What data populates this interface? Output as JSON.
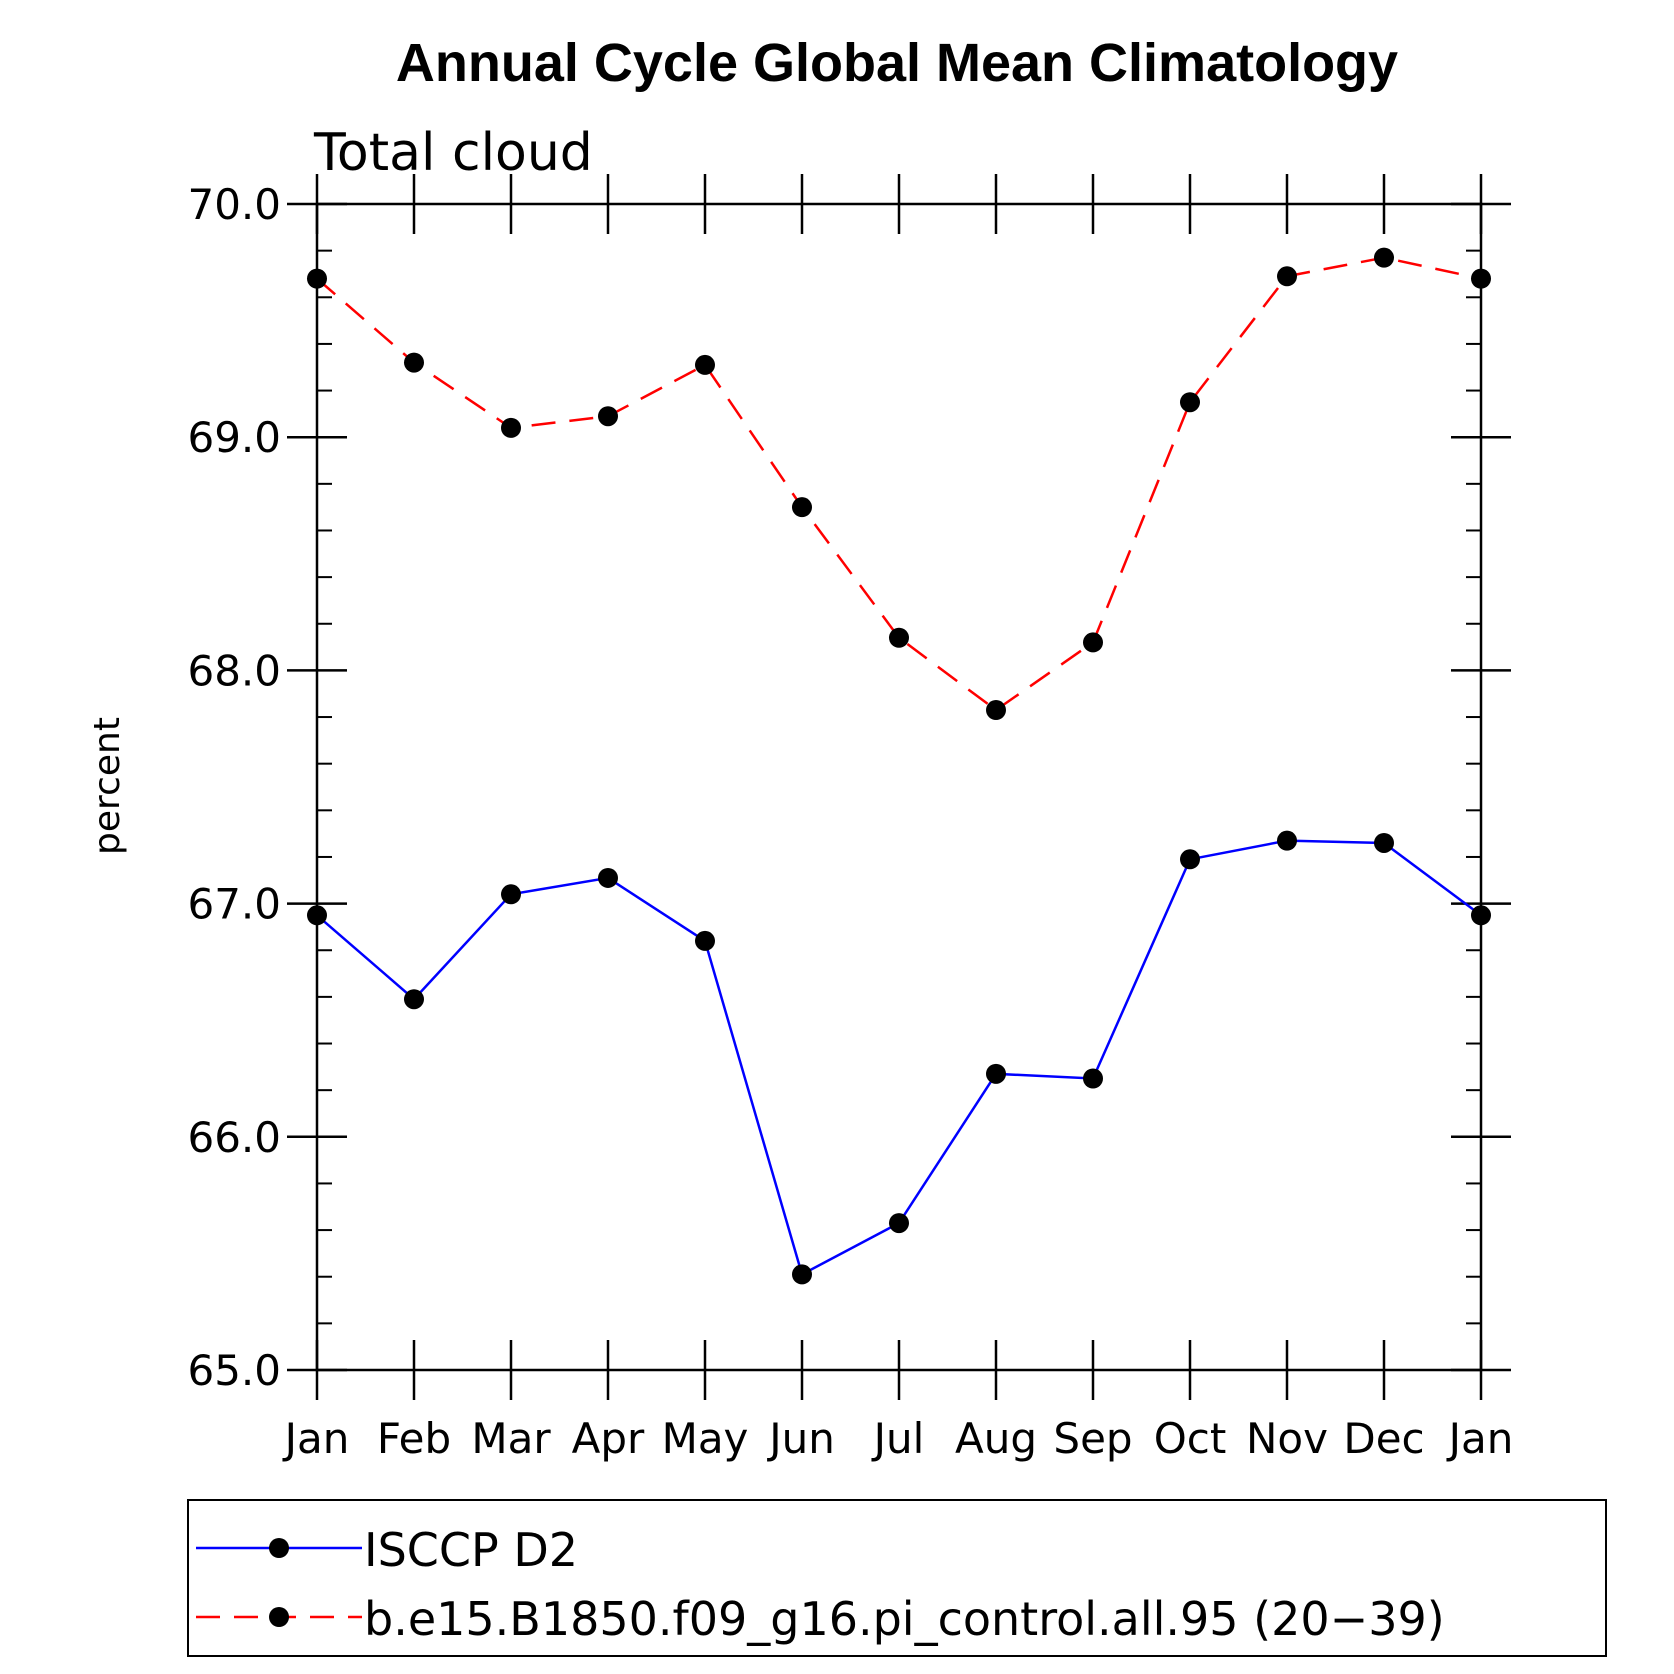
{
  "chart_data": {
    "type": "line",
    "title": "Annual Cycle Global Mean Climatology",
    "subtitle": "Total cloud",
    "xlabel": "",
    "ylabel": "percent",
    "categories": [
      "Jan",
      "Feb",
      "Mar",
      "Apr",
      "May",
      "Jun",
      "Jul",
      "Aug",
      "Sep",
      "Oct",
      "Nov",
      "Dec",
      "Jan"
    ],
    "ylim": [
      65.0,
      70.0
    ],
    "y_ticks": [
      "65.0",
      "66.0",
      "67.0",
      "68.0",
      "69.0",
      "70.0"
    ],
    "grid": false,
    "legend_position": "bottom",
    "series": [
      {
        "name": "ISCCP D2",
        "color": "#0000ff",
        "line_style": "solid",
        "values": [
          66.95,
          66.59,
          67.04,
          67.11,
          66.84,
          65.41,
          65.63,
          66.27,
          66.25,
          67.19,
          67.27,
          67.26,
          66.95
        ]
      },
      {
        "name": "b.e15.B1850.f09_g16.pi_control.all.95 (20−39)",
        "color": "#ff0000",
        "line_style": "dashed",
        "values": [
          69.68,
          69.32,
          69.04,
          69.09,
          69.31,
          68.7,
          68.14,
          67.83,
          68.12,
          69.15,
          69.69,
          69.77,
          69.68
        ]
      }
    ]
  }
}
